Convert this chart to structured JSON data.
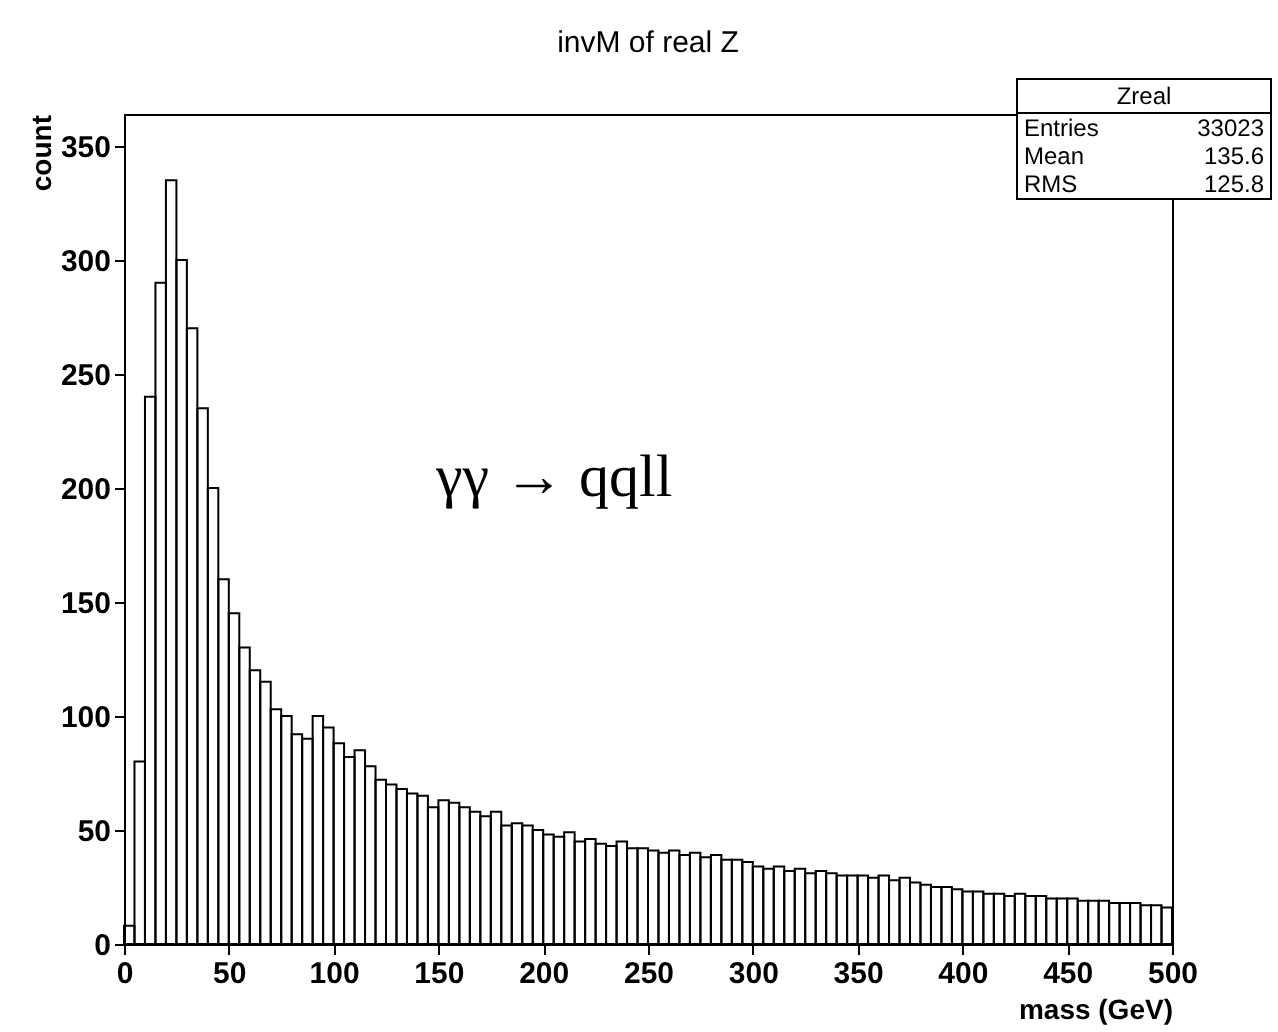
{
  "chart_data": {
    "type": "histogram",
    "title": "invM of real Z",
    "xlabel": "mass (GeV)",
    "ylabel": "count",
    "annotations": [
      "γγ → qqll",
      "Zreal",
      "Entries 33023",
      "Mean 135.6",
      "RMS 125.8"
    ],
    "bins": [
      0,
      5,
      10,
      15,
      20,
      25,
      30,
      35,
      40,
      45,
      50,
      55,
      60,
      65,
      70,
      75,
      80,
      85,
      90,
      95,
      100,
      105,
      110,
      115,
      120,
      125,
      130,
      135,
      140,
      145,
      150,
      155,
      160,
      165,
      170,
      175,
      180,
      185,
      190,
      195,
      200,
      205,
      210,
      215,
      220,
      225,
      230,
      235,
      240,
      245,
      250,
      255,
      260,
      265,
      270,
      275,
      280,
      285,
      290,
      295,
      300,
      305,
      310,
      315,
      320,
      325,
      330,
      335,
      340,
      345,
      350,
      355,
      360,
      365,
      370,
      375,
      380,
      385,
      390,
      395,
      400,
      405,
      410,
      415,
      420,
      425,
      430,
      435,
      440,
      445,
      450,
      455,
      460,
      465,
      470,
      475,
      480,
      485,
      490,
      495,
      500
    ],
    "values": [
      8,
      80,
      240,
      290,
      335,
      300,
      270,
      235,
      200,
      160,
      145,
      130,
      120,
      115,
      103,
      100,
      92,
      90,
      100,
      95,
      88,
      82,
      85,
      78,
      72,
      70,
      68,
      66,
      65,
      60,
      63,
      62,
      60,
      58,
      56,
      58,
      52,
      53,
      52,
      50,
      48,
      47,
      49,
      45,
      46,
      44,
      43,
      45,
      42,
      42,
      41,
      40,
      41,
      39,
      40,
      38,
      39,
      37,
      37,
      36,
      34,
      33,
      34,
      32,
      33,
      31,
      32,
      31,
      30,
      30,
      30,
      29,
      30,
      28,
      29,
      27,
      26,
      25,
      25,
      24,
      23,
      23,
      22,
      22,
      21,
      22,
      21,
      21,
      20,
      20,
      20,
      19,
      19,
      19,
      18,
      18,
      18,
      17,
      17,
      16
    ],
    "color": "#000000",
    "xlim": [
      0,
      500
    ],
    "ylim": [
      0,
      364
    ],
    "xticks": [
      0,
      50,
      100,
      150,
      200,
      250,
      300,
      350,
      400,
      450,
      500
    ],
    "yticks": [
      0,
      50,
      100,
      150,
      200,
      250,
      300,
      350
    ],
    "grid": false
  }
}
